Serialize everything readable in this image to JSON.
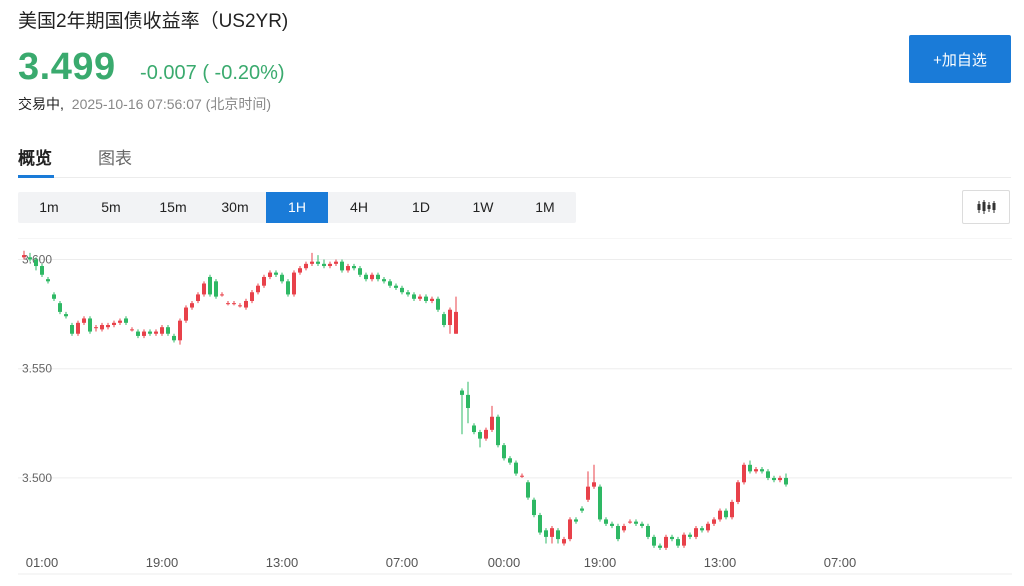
{
  "header": {
    "title": "美国2年期国债收益率（US2YR)",
    "price": "3.499",
    "change": "-0.007 ( -0.20%)",
    "status": "交易中,",
    "timestamp": "2025-10-16 07:56:07 (北京时间)",
    "add_watchlist_label": "+加自选"
  },
  "tabs": [
    {
      "label": "概览",
      "active": true
    },
    {
      "label": "图表",
      "active": false
    }
  ],
  "intervals": [
    {
      "label": "1m",
      "active": false
    },
    {
      "label": "5m",
      "active": false
    },
    {
      "label": "15m",
      "active": false
    },
    {
      "label": "30m",
      "active": false
    },
    {
      "label": "1H",
      "active": true
    },
    {
      "label": "4H",
      "active": false
    },
    {
      "label": "1D",
      "active": false
    },
    {
      "label": "1W",
      "active": false
    },
    {
      "label": "1M",
      "active": false
    }
  ],
  "colors": {
    "up": "#e8414a",
    "down": "#2eb864",
    "accent": "#1a7bd8",
    "price": "#3aaa6e"
  },
  "chart_type_icon": "candlestick-icon",
  "chart_data": {
    "type": "candlestick",
    "title": "",
    "xlabel": "",
    "ylabel": "",
    "ylim": [
      3.467,
      3.608
    ],
    "yticks": [
      3.6,
      3.55,
      3.5
    ],
    "ytick_labels": [
      "3.600",
      "3.550",
      "3.500"
    ],
    "xtick_labels": [
      "01:00",
      "19:00",
      "13:00",
      "07:00",
      "00:00",
      "19:00",
      "13:00",
      "07:00"
    ],
    "xtick_index": [
      3,
      23,
      43,
      63,
      80,
      96,
      116,
      136
    ],
    "grid": true,
    "candles": [
      [
        3.601,
        3.602,
        3.604,
        3.6
      ],
      [
        3.601,
        3.6,
        3.603,
        3.599
      ],
      [
        3.6,
        3.597,
        3.601,
        3.595
      ],
      [
        3.597,
        3.593,
        3.598,
        3.592
      ],
      [
        3.591,
        3.59,
        3.592,
        3.589
      ],
      [
        3.584,
        3.582,
        3.585,
        3.581
      ],
      [
        3.58,
        3.576,
        3.581,
        3.575
      ],
      [
        3.575,
        3.574,
        3.576,
        3.573
      ],
      [
        3.57,
        3.566,
        3.571,
        3.565
      ],
      [
        3.566,
        3.571,
        3.572,
        3.565
      ],
      [
        3.571,
        3.573,
        3.574,
        3.57
      ],
      [
        3.573,
        3.567,
        3.574,
        3.566
      ],
      [
        3.569,
        3.569,
        3.57,
        3.567
      ],
      [
        3.568,
        3.57,
        3.571,
        3.567
      ],
      [
        3.569,
        3.57,
        3.571,
        3.568
      ],
      [
        3.57,
        3.571,
        3.572,
        3.569
      ],
      [
        3.571,
        3.572,
        3.573,
        3.57
      ],
      [
        3.573,
        3.571,
        3.574,
        3.57
      ],
      [
        3.568,
        3.568,
        3.569,
        3.567
      ],
      [
        3.567,
        3.565,
        3.568,
        3.564
      ],
      [
        3.565,
        3.567,
        3.568,
        3.564
      ],
      [
        3.567,
        3.566,
        3.568,
        3.565
      ],
      [
        3.566,
        3.567,
        3.568,
        3.565
      ],
      [
        3.566,
        3.569,
        3.57,
        3.565
      ],
      [
        3.569,
        3.566,
        3.57,
        3.565
      ],
      [
        3.565,
        3.563,
        3.566,
        3.562
      ],
      [
        3.563,
        3.572,
        3.573,
        3.561
      ],
      [
        3.572,
        3.578,
        3.579,
        3.571
      ],
      [
        3.578,
        3.58,
        3.581,
        3.577
      ],
      [
        3.581,
        3.584,
        3.585,
        3.58
      ],
      [
        3.584,
        3.589,
        3.59,
        3.583
      ],
      [
        3.592,
        3.584,
        3.593,
        3.583
      ],
      [
        3.59,
        3.583,
        3.591,
        3.582
      ],
      [
        3.584,
        3.584,
        3.585,
        3.583
      ],
      [
        3.58,
        3.58,
        3.581,
        3.579
      ],
      [
        3.58,
        3.58,
        3.581,
        3.579
      ],
      [
        3.579,
        3.579,
        3.58,
        3.578
      ],
      [
        3.578,
        3.581,
        3.582,
        3.577
      ],
      [
        3.581,
        3.585,
        3.586,
        3.58
      ],
      [
        3.585,
        3.588,
        3.589,
        3.584
      ],
      [
        3.588,
        3.592,
        3.593,
        3.587
      ],
      [
        3.592,
        3.594,
        3.595,
        3.591
      ],
      [
        3.594,
        3.593,
        3.595,
        3.592
      ],
      [
        3.593,
        3.59,
        3.594,
        3.589
      ],
      [
        3.59,
        3.584,
        3.591,
        3.583
      ],
      [
        3.584,
        3.594,
        3.595,
        3.583
      ],
      [
        3.594,
        3.596,
        3.597,
        3.593
      ],
      [
        3.596,
        3.598,
        3.599,
        3.595
      ],
      [
        3.598,
        3.599,
        3.603,
        3.597
      ],
      [
        3.599,
        3.598,
        3.602,
        3.597
      ],
      [
        3.598,
        3.597,
        3.6,
        3.596
      ],
      [
        3.597,
        3.598,
        3.599,
        3.596
      ],
      [
        3.598,
        3.599,
        3.6,
        3.597
      ],
      [
        3.599,
        3.595,
        3.6,
        3.594
      ],
      [
        3.595,
        3.597,
        3.598,
        3.594
      ],
      [
        3.597,
        3.596,
        3.598,
        3.595
      ],
      [
        3.596,
        3.593,
        3.597,
        3.592
      ],
      [
        3.593,
        3.591,
        3.594,
        3.59
      ],
      [
        3.591,
        3.593,
        3.594,
        3.59
      ],
      [
        3.593,
        3.591,
        3.594,
        3.59
      ],
      [
        3.591,
        3.59,
        3.592,
        3.589
      ],
      [
        3.59,
        3.588,
        3.591,
        3.587
      ],
      [
        3.588,
        3.587,
        3.589,
        3.586
      ],
      [
        3.587,
        3.585,
        3.588,
        3.584
      ],
      [
        3.585,
        3.584,
        3.586,
        3.583
      ],
      [
        3.584,
        3.582,
        3.585,
        3.581
      ],
      [
        3.582,
        3.583,
        3.584,
        3.581
      ],
      [
        3.583,
        3.581,
        3.584,
        3.58
      ],
      [
        3.581,
        3.582,
        3.583,
        3.58
      ],
      [
        3.582,
        3.577,
        3.583,
        3.576
      ],
      [
        3.575,
        3.57,
        3.576,
        3.569
      ],
      [
        3.57,
        3.577,
        3.578,
        3.566
      ],
      [
        3.566,
        3.576,
        3.583,
        3.566
      ],
      [
        3.54,
        3.538,
        3.541,
        3.52
      ],
      [
        3.538,
        3.532,
        3.544,
        3.525
      ],
      [
        3.524,
        3.521,
        3.525,
        3.52
      ],
      [
        3.521,
        3.518,
        3.522,
        3.514
      ],
      [
        3.518,
        3.522,
        3.523,
        3.517
      ],
      [
        3.522,
        3.528,
        3.533,
        3.521
      ],
      [
        3.528,
        3.515,
        3.529,
        3.514
      ],
      [
        3.515,
        3.509,
        3.516,
        3.508
      ],
      [
        3.509,
        3.507,
        3.51,
        3.506
      ],
      [
        3.507,
        3.502,
        3.508,
        3.501
      ],
      [
        3.501,
        3.501,
        3.502,
        3.5
      ],
      [
        3.498,
        3.491,
        3.499,
        3.49
      ],
      [
        3.49,
        3.483,
        3.491,
        3.482
      ],
      [
        3.483,
        3.475,
        3.484,
        3.474
      ],
      [
        3.476,
        3.473,
        3.477,
        3.47
      ],
      [
        3.473,
        3.477,
        3.478,
        3.47
      ],
      [
        3.476,
        3.472,
        3.477,
        3.47
      ],
      [
        3.47,
        3.472,
        3.473,
        3.469
      ],
      [
        3.472,
        3.481,
        3.482,
        3.471
      ],
      [
        3.481,
        3.48,
        3.482,
        3.479
      ],
      [
        3.486,
        3.485,
        3.487,
        3.484
      ],
      [
        3.49,
        3.496,
        3.503,
        3.489
      ],
      [
        3.496,
        3.498,
        3.506,
        3.495
      ],
      [
        3.496,
        3.481,
        3.497,
        3.48
      ],
      [
        3.481,
        3.479,
        3.482,
        3.478
      ],
      [
        3.479,
        3.478,
        3.48,
        3.477
      ],
      [
        3.478,
        3.472,
        3.479,
        3.471
      ],
      [
        3.476,
        3.478,
        3.479,
        3.475
      ],
      [
        3.48,
        3.48,
        3.481,
        3.479
      ],
      [
        3.48,
        3.479,
        3.481,
        3.478
      ],
      [
        3.479,
        3.478,
        3.48,
        3.477
      ],
      [
        3.478,
        3.473,
        3.479,
        3.472
      ],
      [
        3.473,
        3.469,
        3.474,
        3.468
      ],
      [
        3.469,
        3.468,
        3.47,
        3.467
      ],
      [
        3.468,
        3.473,
        3.474,
        3.467
      ],
      [
        3.473,
        3.472,
        3.474,
        3.471
      ],
      [
        3.472,
        3.469,
        3.473,
        3.468
      ],
      [
        3.469,
        3.474,
        3.475,
        3.468
      ],
      [
        3.474,
        3.473,
        3.475,
        3.472
      ],
      [
        3.473,
        3.477,
        3.478,
        3.472
      ],
      [
        3.477,
        3.476,
        3.478,
        3.475
      ],
      [
        3.476,
        3.479,
        3.48,
        3.475
      ],
      [
        3.479,
        3.481,
        3.482,
        3.478
      ],
      [
        3.481,
        3.485,
        3.486,
        3.48
      ],
      [
        3.485,
        3.482,
        3.486,
        3.481
      ],
      [
        3.482,
        3.489,
        3.49,
        3.481
      ],
      [
        3.489,
        3.498,
        3.499,
        3.488
      ],
      [
        3.498,
        3.506,
        3.507,
        3.497
      ],
      [
        3.506,
        3.503,
        3.508,
        3.502
      ],
      [
        3.503,
        3.504,
        3.505,
        3.502
      ],
      [
        3.504,
        3.503,
        3.505,
        3.502
      ],
      [
        3.503,
        3.5,
        3.504,
        3.499
      ],
      [
        3.5,
        3.499,
        3.501,
        3.498
      ],
      [
        3.499,
        3.5,
        3.501,
        3.498
      ],
      [
        3.5,
        3.497,
        3.502,
        3.496
      ]
    ]
  }
}
